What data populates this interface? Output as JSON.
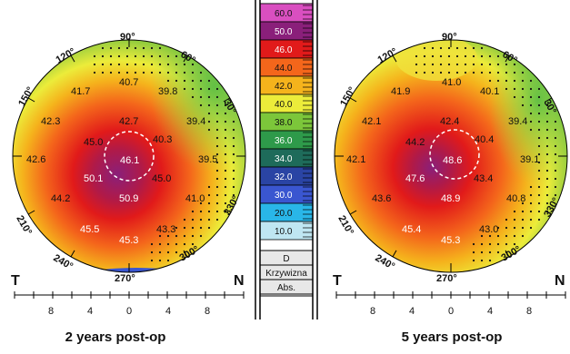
{
  "left_map": {
    "caption": "2 years post-op",
    "angles": {
      "a90": "90°",
      "a60": "60°",
      "a30": "30°",
      "a330": "330°",
      "a300": "300°",
      "a270": "270°",
      "a240": "240°",
      "a210": "210°",
      "a150": "150°",
      "a120": "120°"
    },
    "side_left": "T",
    "side_right": "N",
    "axis_ticks": [
      "8",
      "4",
      "0",
      "4",
      "8"
    ],
    "values": {
      "v1": "40.7",
      "v2": "41.7",
      "v3": "39.8",
      "v4": "42.3",
      "v5": "42.7",
      "v6": "39.4",
      "v7": "45.0",
      "v8": "40.3",
      "v9": "42.6",
      "v10": "46.1",
      "v11": "39.5",
      "v12": "50.1",
      "v13": "45.0",
      "v14": "44.2",
      "v15": "50.9",
      "v16": "41.0",
      "v17": "45.5",
      "v18": "43.3",
      "v19": "45.3"
    }
  },
  "right_map": {
    "caption": "5 years post-op",
    "angles": {
      "a90": "90°",
      "a60": "60°",
      "a30": "30°",
      "a330": "330°",
      "a300": "300°",
      "a270": "270°",
      "a240": "240°",
      "a210": "210°",
      "a150": "150°",
      "a120": "120°"
    },
    "side_left": "T",
    "side_right": "N",
    "axis_ticks": [
      "8",
      "4",
      "0",
      "4",
      "8"
    ],
    "values": {
      "v1": "41.0",
      "v2": "41.9",
      "v3": "40.1",
      "v4": "42.1",
      "v5": "42.4",
      "v6": "39.4",
      "v7": "44.2",
      "v8": "40.4",
      "v9": "42.1",
      "v10": "48.6",
      "v11": "39.1",
      "v12": "47.6",
      "v13": "43.4",
      "v14": "43.6",
      "v15": "48.9",
      "v16": "40.8",
      "v17": "45.4",
      "v18": "43.0",
      "v19": "45.3"
    }
  },
  "scale": {
    "steps": [
      {
        "label": "60.0",
        "color": "#d94fc0"
      },
      {
        "label": "50.0",
        "color": "#8a1f7a"
      },
      {
        "label": "46.0",
        "color": "#e11a1a"
      },
      {
        "label": "44.0",
        "color": "#f4661b"
      },
      {
        "label": "42.0",
        "color": "#f5b31c"
      },
      {
        "label": "40.0",
        "color": "#ecec3a"
      },
      {
        "label": "38.0",
        "color": "#7cc63a"
      },
      {
        "label": "36.0",
        "color": "#2e9a4a"
      },
      {
        "label": "34.0",
        "color": "#1e6b5a"
      },
      {
        "label": "32.0",
        "color": "#2a44a4"
      },
      {
        "label": "30.0",
        "color": "#3a56d0"
      },
      {
        "label": "20.0",
        "color": "#29b6e8"
      },
      {
        "label": "10.0",
        "color": "#bfe6f2"
      }
    ],
    "unit": "D",
    "type_label": "Krzywizna",
    "mode_label": "Abs."
  }
}
